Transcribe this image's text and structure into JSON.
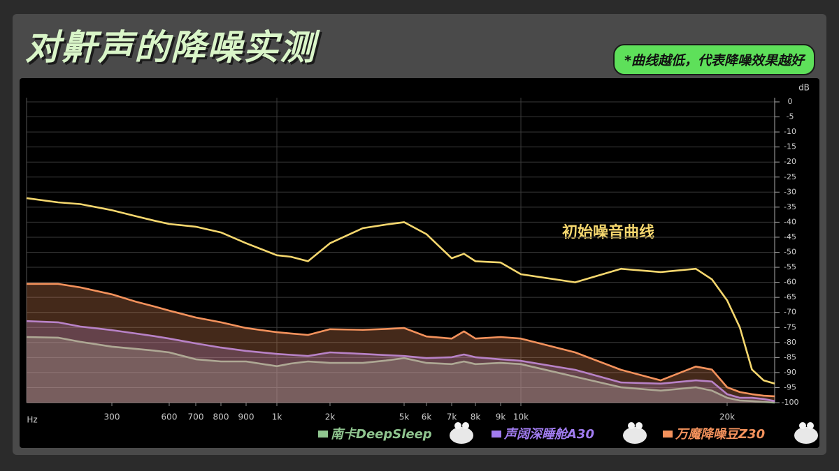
{
  "chart_data": {
    "type": "line",
    "title": "对鼾声的降噪实测",
    "subtitle": "*曲线越低，代表降噪效果越好",
    "annotation": "初始噪音曲线",
    "x_label": "Hz",
    "y_label": "dB",
    "x_scale": "log",
    "xlim": [
      100,
      24000
    ],
    "xticks": [
      300,
      600,
      700,
      800,
      900,
      {
        "value": 1000,
        "label": "1k"
      },
      {
        "value": 2000,
        "label": "2k"
      },
      {
        "value": 5000,
        "label": "5k"
      },
      {
        "value": 6000,
        "label": "6k"
      },
      {
        "value": 7000,
        "label": "7k"
      },
      {
        "value": 8000,
        "label": "8k"
      },
      {
        "value": 9000,
        "label": "9k"
      },
      {
        "value": 10000,
        "label": "10k"
      },
      {
        "value": 20000,
        "label": "20k"
      }
    ],
    "ylim": [
      -100,
      0
    ],
    "yticks": [
      0,
      -5,
      -10,
      -15,
      -20,
      -25,
      -30,
      -35,
      -40,
      -45,
      -50,
      -55,
      -60,
      -65,
      -70,
      -75,
      -80,
      -85,
      -90,
      -95,
      -100
    ],
    "grid": true,
    "x": [
      100,
      150,
      200,
      300,
      400,
      500,
      600,
      700,
      800,
      900,
      1000,
      1200,
      1500,
      2000,
      3000,
      4000,
      5000,
      6000,
      7000,
      7500,
      8000,
      9000,
      10000,
      12000,
      14000,
      16000,
      18000,
      19000,
      20000,
      21000,
      22000,
      23000,
      24000
    ],
    "series": [
      {
        "name": "初始噪音",
        "color": "#f5d76e",
        "fill": false,
        "values": [
          -32,
          -33.4,
          -34,
          -36,
          -38,
          -39.5,
          -40.6,
          -41.5,
          -43.4,
          -47,
          -51,
          -51.5,
          -53,
          -47,
          -42,
          -40.8,
          -40,
          -44,
          -52,
          -50.5,
          -53,
          -53.4,
          -57.3,
          -60,
          -55.5,
          -56.6,
          -55.5,
          -59,
          -66,
          -75,
          -89,
          -92.6,
          -93.7
        ]
      },
      {
        "name": "万魔降噪豆Z30",
        "color": "#f4925c",
        "fill": true,
        "values": [
          -60.5,
          -60.5,
          -61.7,
          -64,
          -66.4,
          -68,
          -69.4,
          -71.7,
          -73.3,
          -75.2,
          -76.6,
          -77,
          -77.5,
          -75.6,
          -75.8,
          -75.5,
          -75.2,
          -78,
          -78.7,
          -76.3,
          -78.7,
          -78.2,
          -78.7,
          -83.3,
          -89.1,
          -92.6,
          -88,
          -89,
          -94.9,
          -96.5,
          -97.2,
          -97.7,
          -97.9
        ]
      },
      {
        "name": "声阔深睡舱A30",
        "color": "#a17cf0",
        "fill": true,
        "values": [
          -72.9,
          -73.3,
          -74.7,
          -75.9,
          -77,
          -77.9,
          -78.7,
          -80.3,
          -81.7,
          -82.8,
          -83.8,
          -84.1,
          -84.5,
          -83.3,
          -83.8,
          -84.2,
          -84.5,
          -85.2,
          -84.9,
          -84,
          -84.9,
          -85.6,
          -86.1,
          -89.1,
          -93.3,
          -93.7,
          -92.6,
          -93,
          -97.2,
          -98.4,
          -98.4,
          -98.8,
          -99.5
        ]
      },
      {
        "name": "南卡DeepSleep",
        "color": "#8fc58f",
        "fill": true,
        "values": [
          -78.2,
          -78.4,
          -79.8,
          -81.4,
          -82.1,
          -82.7,
          -83.3,
          -85.6,
          -86.3,
          -86.3,
          -87.9,
          -87,
          -86.3,
          -86.8,
          -86.8,
          -86,
          -85.2,
          -86.8,
          -87.2,
          -86.3,
          -87.2,
          -86.8,
          -87.2,
          -91.4,
          -94.9,
          -96,
          -94.9,
          -96,
          -98.4,
          -99.3,
          -99.5,
          -99.8,
          -100
        ]
      }
    ],
    "legend_order": [
      3,
      2,
      1
    ]
  }
}
